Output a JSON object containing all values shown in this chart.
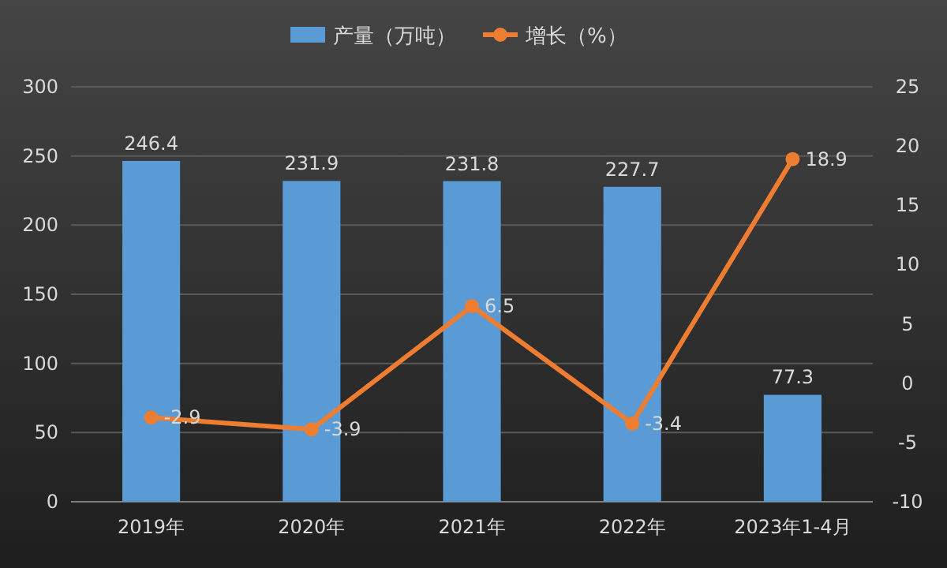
{
  "chart_data": {
    "type": "bar",
    "categories": [
      "2019年",
      "2020年",
      "2021年",
      "2022年",
      "2023年1-4月"
    ],
    "series": [
      {
        "name": "产量（万吨）",
        "color": "#5b9bd5",
        "values": [
          246.4,
          231.9,
          231.8,
          227.7,
          77.3
        ]
      },
      {
        "name": "增长（%）",
        "type": "line",
        "axis": "y2",
        "color": "#ed7d31",
        "values": [
          -2.9,
          -3.9,
          6.5,
          -3.4,
          18.9
        ]
      }
    ],
    "ylim": [
      0,
      300
    ],
    "yticks": [
      0,
      50,
      100,
      150,
      200,
      250,
      300
    ],
    "y2lim": [
      -10,
      25
    ],
    "y2ticks": [
      -10,
      -5,
      0,
      5,
      10,
      15,
      20,
      25
    ],
    "grid": "y",
    "legend": "top",
    "marker": "circle",
    "data_labels": true
  }
}
